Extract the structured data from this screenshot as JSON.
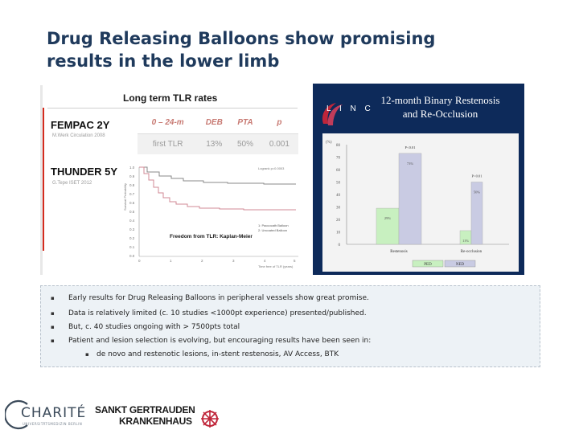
{
  "slide": {
    "title_line1": "Drug Releasing Balloons show promising",
    "title_line2": "results in the lower limb"
  },
  "tlr_panel": {
    "heading": "Long term TLR rates",
    "study1": {
      "name": "FEMPAC 2Y",
      "ref": "M.Werk Circulation 2008"
    },
    "study2": {
      "name": "THUNDER 5Y",
      "ref": "G.Tepe ISET 2012"
    },
    "table": {
      "headers": [
        "0 – 24-m",
        "DEB",
        "PTA",
        "p"
      ],
      "row": [
        "first TLR",
        "13%",
        "50%",
        "0.001"
      ]
    },
    "km_caption": "Freedom from TLR: Kaplan-Meier",
    "km_logrank": "Logrank p=0.0003",
    "km_xlabel": "Time free of TLR (years)",
    "km_ylabel": "Survival Probability",
    "km_legend": [
      "1: Paccocath Balloon",
      "2: Uncoated Balloon"
    ],
    "km_yticks": [
      "1.0",
      "0.9",
      "0.8",
      "0.7",
      "0.6",
      "0.5",
      "0.4",
      "0.3",
      "0.2",
      "0.1",
      "0.0"
    ],
    "km_xticks": [
      "0",
      "1",
      "2",
      "3",
      "4",
      "5"
    ]
  },
  "linc_panel": {
    "logo_text": "L I N C",
    "title_line1": "12-month Binary Restenosis",
    "title_line2": "and Re-Occlusion"
  },
  "chart_data": {
    "type": "bar",
    "title": "12-month Binary Restenosis and Re-Occlusion",
    "ylabel": "(%)",
    "ylim": [
      0,
      80
    ],
    "yticks": [
      0,
      10,
      20,
      30,
      40,
      50,
      60,
      70,
      80
    ],
    "categories": [
      "Restenosis",
      "Re-occlusion"
    ],
    "series": [
      {
        "name": "PED",
        "color": "#c8f0c0",
        "values": [
          29,
          11
        ]
      },
      {
        "name": "NED",
        "color": "#c9cbe3",
        "values": [
          73,
          50
        ]
      }
    ],
    "value_labels": [
      [
        "29%",
        "73%"
      ],
      [
        "11%",
        "50%"
      ]
    ],
    "p_values": [
      "P<0.01",
      "P<0.01"
    ]
  },
  "bullets": [
    "Early results for Drug Releasing Balloons in peripheral vessels show great promise.",
    "Data is relatively limited (c. 10 studies <1000pt experience) presented/published.",
    "But, c. 40 studies ongoing with > 7500pts total",
    "Patient and lesion selection is evolving, but encouraging results have been seen in:"
  ],
  "sub_bullets": [
    "de novo and restenotic lesions, in-stent restenosis, AV Access, BTK"
  ],
  "bullet_symbol": "▪",
  "logos": {
    "charite_text": "CHARITÉ",
    "charite_sub": "UNIVERSITÄTSMEDIZIN BERLIN",
    "hospital_line1": "SANKT GERTRAUDEN",
    "hospital_line2": "KRANKENHAUS"
  },
  "colors": {
    "title": "#1f3a5c",
    "accent_red": "#d42c1f",
    "panel_navy": "#0d2a5a",
    "ped_green": "#c8f0c0",
    "ned_lavender": "#c9cbe3"
  }
}
